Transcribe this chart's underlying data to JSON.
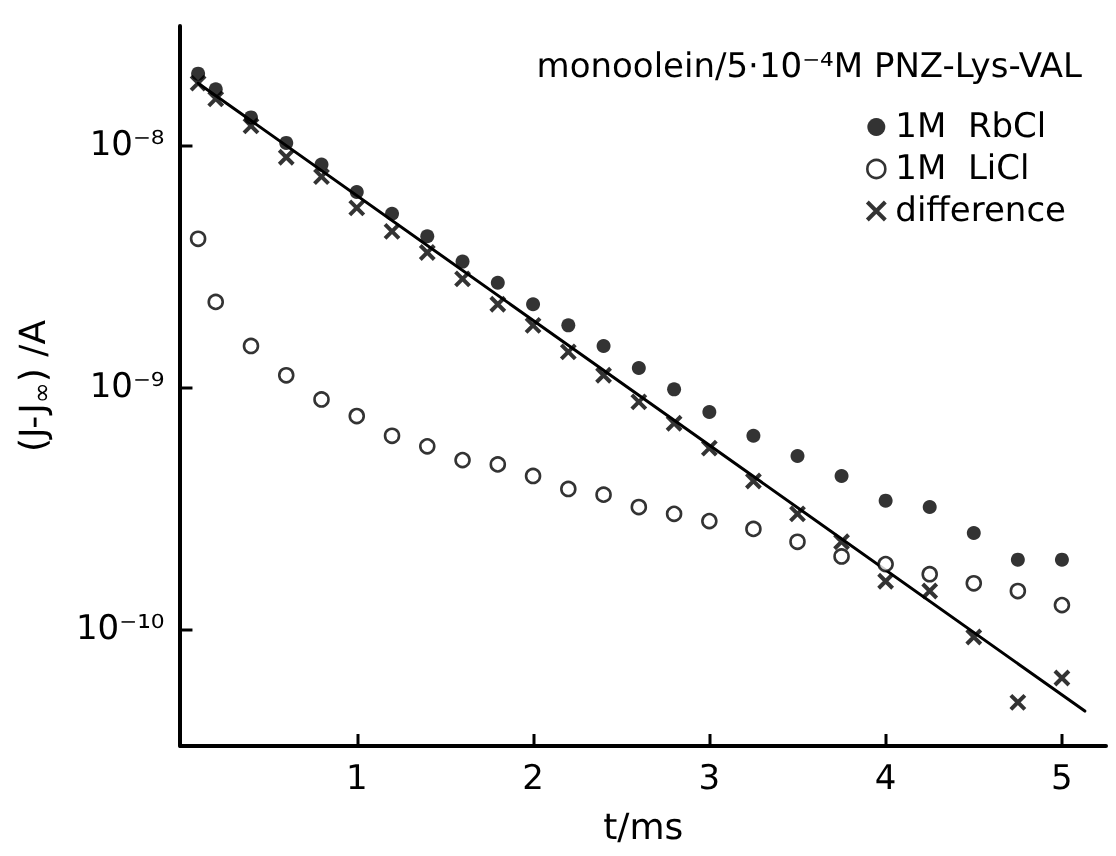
{
  "chart_data": {
    "type": "scatter",
    "legend_title": "monoolein/5·10⁻⁴M PNZ-Lys-VAL",
    "xlabel": "t/ms",
    "ylabel": "(J-J$_{∞}$) /A",
    "x": [
      0.1,
      0.2,
      0.4,
      0.6,
      0.8,
      1.0,
      1.2,
      1.4,
      1.6,
      1.8,
      2.0,
      2.2,
      2.4,
      2.6,
      2.8,
      3.0,
      3.25,
      3.5,
      3.75,
      4.0,
      4.25,
      4.5,
      4.75,
      5.0
    ],
    "series": [
      {
        "name": "1M  RbCl",
        "color": "#000000",
        "marker": "circle",
        "values": [
          1.97e-08,
          1.7e-08,
          1.3e-08,
          1.02e-08,
          8.3e-09,
          6.4e-09,
          5.2e-09,
          4.2e-09,
          3.3e-09,
          2.7e-09,
          2.2e-09,
          1.8e-09,
          1.48e-09,
          1.2e-09,
          9.8e-10,
          7.9e-10,
          6.3e-10,
          5.2e-10,
          4.3e-10,
          3.4e-10,
          3.2e-10,
          2.5e-10,
          1.94e-10,
          1.94e-10
        ]
      },
      {
        "name": "1M  LiCl",
        "color": "#000000",
        "marker": "circle-open",
        "values": [
          4.1e-09,
          2.25e-09,
          1.48e-09,
          1.12e-09,
          8.9e-10,
          7.6e-10,
          6.3e-10,
          5.7e-10,
          5e-10,
          4.8e-10,
          4.3e-10,
          3.8e-10,
          3.6e-10,
          3.2e-10,
          3e-10,
          2.8e-10,
          2.6e-10,
          2.3e-10,
          2e-10,
          1.86e-10,
          1.69e-10,
          1.55e-10,
          1.44e-10,
          1.26e-10
        ]
      },
      {
        "name": "difference",
        "color": "#000000",
        "marker": "cross",
        "values": [
          1.8e-08,
          1.55e-08,
          1.2e-08,
          8.9e-09,
          7.4e-09,
          5.5e-09,
          4.4e-09,
          3.6e-09,
          2.8e-09,
          2.2e-09,
          1.8e-09,
          1.4e-09,
          1.12e-09,
          8.7e-10,
          7.1e-10,
          5.6e-10,
          4.1e-10,
          3e-10,
          2.3e-10,
          1.58e-10,
          1.44e-10,
          9.3e-11,
          5e-11,
          6.3e-11
        ]
      },
      {
        "type": "line",
        "color": "#000000",
        "marker": "none",
        "line_style": "solid",
        "x": [
          0.1,
          5.13
        ],
        "values": [
          1.8e-08,
          4.6e-11
        ]
      }
    ],
    "log": "y",
    "xlim": [
      0,
      5.25
    ],
    "xticks": [
      1,
      2,
      3,
      4,
      5
    ],
    "ylim": [
      3.3e-11,
      3.1e-08
    ],
    "yticks": [
      {
        "value": 1e-10,
        "label": "10⁻¹⁰"
      },
      {
        "value": 1e-09,
        "label": "10⁻⁹"
      },
      {
        "value": 1e-08,
        "label": "10⁻⁸"
      }
    ],
    "grid": false,
    "legend": "top right"
  }
}
